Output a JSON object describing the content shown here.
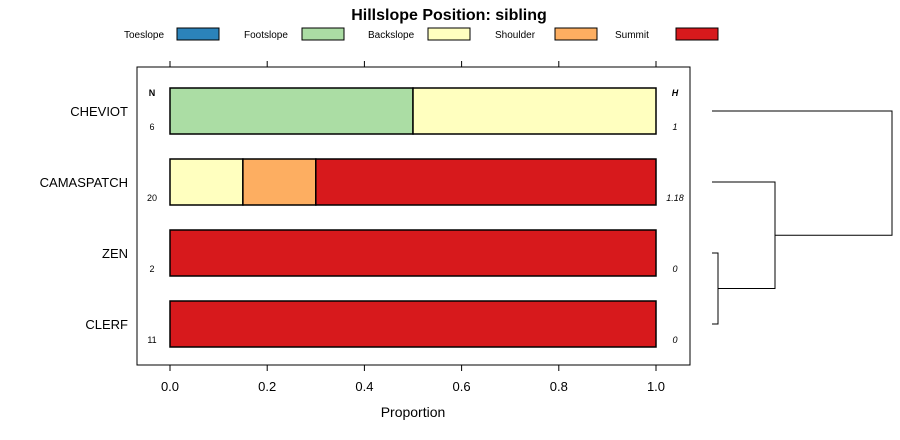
{
  "chart_data": {
    "type": "bar",
    "orientation": "horizontal-stacked",
    "title": "Hillslope Position: sibling",
    "xlabel": "Proportion",
    "ylabel": "",
    "xlim": [
      0,
      1
    ],
    "xticks": [
      "0.0",
      "0.2",
      "0.4",
      "0.6",
      "0.8",
      "1.0"
    ],
    "legend_position": "top",
    "legend": [
      {
        "name": "Toeslope",
        "color": "#2B83BA"
      },
      {
        "name": "Footslope",
        "color": "#ABDDA4"
      },
      {
        "name": "Backslope",
        "color": "#FFFFBF"
      },
      {
        "name": "Shoulder",
        "color": "#FDAE61"
      },
      {
        "name": "Summit",
        "color": "#D7191C"
      }
    ],
    "n_header": "N",
    "h_header": "H",
    "categories": [
      "CHEVIOT",
      "CAMASPATCH",
      "ZEN",
      "CLERF"
    ],
    "n_values": [
      "6",
      "20",
      "2",
      "11"
    ],
    "h_values": [
      "1",
      "1.18",
      "0",
      "0"
    ],
    "series": [
      {
        "name": "Toeslope",
        "values": [
          0,
          0,
          0,
          0
        ]
      },
      {
        "name": "Footslope",
        "values": [
          0.5,
          0,
          0,
          0
        ]
      },
      {
        "name": "Backslope",
        "values": [
          0.5,
          0.15,
          0,
          0
        ]
      },
      {
        "name": "Shoulder",
        "values": [
          0,
          0.15,
          0,
          0
        ]
      },
      {
        "name": "Summit",
        "values": [
          0,
          0.7,
          1,
          1
        ]
      }
    ],
    "dendrogram": {
      "merges": [
        {
          "left": "ZEN",
          "right": "CLERF",
          "height": 0.0
        },
        {
          "left": "CAMASPATCH",
          "right": "ZEN+CLERF",
          "height": 0.35
        },
        {
          "left": "CHEVIOT",
          "right": "CAMASPATCH+ZEN+CLERF",
          "height": 1.0
        }
      ]
    },
    "grid": false
  }
}
